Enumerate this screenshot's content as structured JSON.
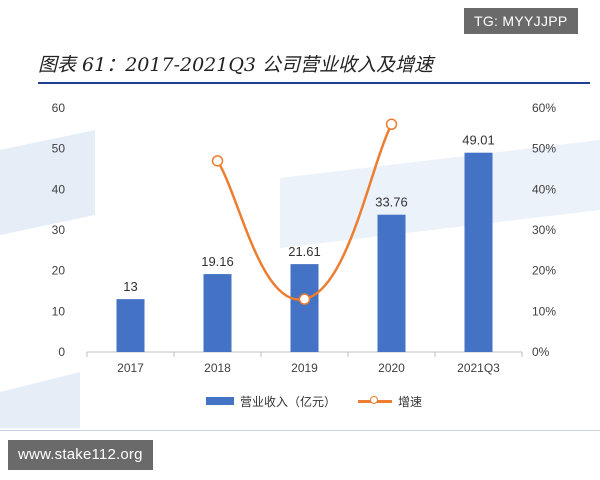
{
  "figure": {
    "title": "图表 61：2017-2021Q3 公司营业收入及增速"
  },
  "watermarks": {
    "top_right": "TG: MYYJJPP",
    "bottom_left": "www.stake112.org"
  },
  "colors": {
    "bar": "#4472c4",
    "line": "#ed7d31",
    "title_rule": "#1f3f8f",
    "axis": "#bfbfbf",
    "tick_text": "#404040"
  },
  "chart_data": {
    "type": "bar",
    "categories": [
      "2017",
      "2018",
      "2019",
      "2020",
      "2021Q3"
    ],
    "series": [
      {
        "name": "营业收入（亿元）",
        "type": "bar",
        "axis": "left",
        "values": [
          13,
          19.16,
          21.61,
          33.76,
          49.01
        ],
        "labels": [
          "13",
          "19.16",
          "21.61",
          "33.76",
          "49.01"
        ]
      },
      {
        "name": "增速",
        "type": "line",
        "axis": "right",
        "values": [
          null,
          0.47,
          0.13,
          0.56,
          null
        ]
      }
    ],
    "y_left": {
      "min": 0,
      "max": 60,
      "ticks": [
        "0",
        "10",
        "20",
        "30",
        "40",
        "50",
        "60"
      ]
    },
    "y_right": {
      "min": 0,
      "max": 0.6,
      "ticks": [
        "0%",
        "10%",
        "20%",
        "30%",
        "40%",
        "50%",
        "60%"
      ]
    },
    "grid": false,
    "legend_position": "bottom"
  }
}
